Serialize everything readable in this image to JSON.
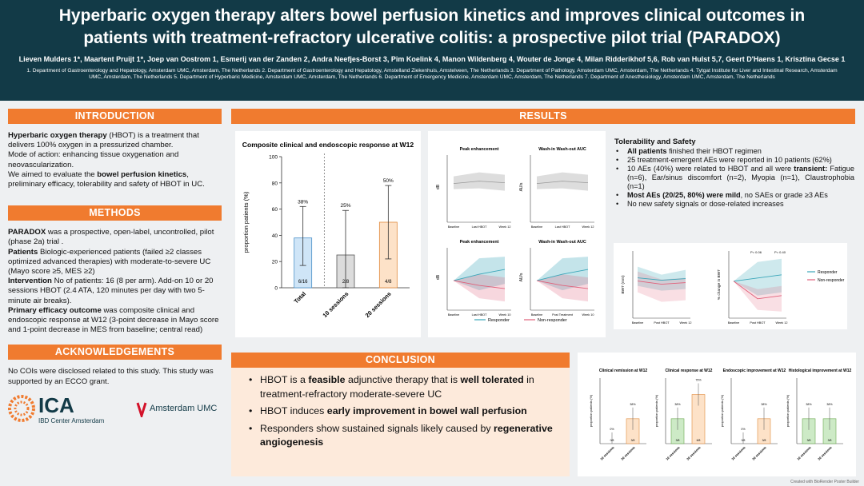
{
  "header": {
    "title_line1": "Hyperbaric oxygen therapy alters bowel perfusion kinetics and improves clinical outcomes in",
    "title_line2": "patients with treatment-refractory ulcerative colitis:  a prospective pilot trial (PARADOX)",
    "authors": "Lieven Mulders 1*, Maartent Pruijt 1*, Joep van Oostrom 1, Esmerij van der Zanden 2,  Andra Neefjes-Borst 3, Pim Koelink 4, Manon Wildenberg 4, Wouter de Jonge 4,  Milan Ridderikhof 5,6, Rob van Hulst 5,7, Geert D'Haens 1, Krisztina Gecse 1",
    "affiliations": "1. Department of Gastroenterology and Hepatology, Amsterdam UMC, Amsterdam, The Netherlands  2. Department of Gastroenterology and Hepatology, Amstelland Ziekenhuis, Amstelveen, The Netherlands 3. Department of Pathology, Amsterdam UMC, Amsterdam, The Netherlands  4. Tytgat Institute for Liver and Intestinal Research, Amsterdam UMC, Amsterdam, The Netherlands  5. Department of Hyperbaric Medicine, Amsterdam UMC, Amsterdam, The Netherlands  6. Department of Emergency Medicine, Amsterdam UMC, Amsterdam, The Netherlands  7. Department of Anesthesiology, Amsterdam UMC, Amsterdam, The Netherlands"
  },
  "intro": {
    "heading": "INTRODUCTION",
    "p1_bold": "Hyperbaric oxygen therapy",
    "p1_rest": " (HBOT) is a treatment that delivers 100% oxygen in a pressurized chamber.",
    "p2": "Mode of action: enhancing tissue oxygenation and neovascularization.",
    "p3_a": "We aimed to evaluate the ",
    "p3_bold": "bowel perfusion kinetics",
    "p3_b": ", preliminary efficacy, tolerability and safety of HBOT in UC."
  },
  "methods": {
    "heading": "METHODS",
    "m1_bold": "PARADOX",
    "m1_rest": " was a prospective, open-label, uncontrolled, pilot (phase 2a) trial .",
    "m2_bold": "Patients",
    "m2_rest": " Biologic-experienced patients (failed ≥2 classes optimized advanced therapies) with moderate-to-severe UC (Mayo score ≥5, MES ≥2)",
    "m3_bold": "Intervention",
    "m3_rest": " No of patients: 16 (8 per arm). Add-on 10 or 20 sessions HBOT (2.4 ATA, 120 minutes per day with two 5-minute air breaks).",
    "m4_bold": "Primary efficacy outcome",
    "m4_rest": " was composite clinical and endoscopic response at W12 (3-point decrease in Mayo score and 1-point decrease in MES from baseline; central read)"
  },
  "ack": {
    "heading": "ACKNOWLEDGEMENTS",
    "text": "No COIs were disclosed related to this study. This study was supported by an ECCO grant.",
    "logo1_big": "ICA",
    "logo1_small": "IBD Center Amsterdam",
    "logo2": "Amsterdam UMC"
  },
  "results": {
    "heading": "RESULTS",
    "tol_title": "Tolerability and Safety",
    "tol_items": [
      {
        "bold": "All patients",
        "rest": " finished their HBOT regimen"
      },
      {
        "bold": "",
        "rest": "25 treatment-emergent AEs were reported in 10 patients (62%)"
      },
      {
        "bold": "",
        "rest": "10 AEs (40%) were related to HBOT and all were "
      },
      {
        "bold": "Most AEs (20/25, 80%) were mild",
        "rest": ", no SAEs or grade ≥3 AEs"
      },
      {
        "bold": "",
        "rest": "No new safety signals or dose-related increases"
      }
    ],
    "tol_item3_bold": "transient:",
    "tol_item3_rest": " Fatigue (n=6), Ear/sinus discomfort (n=2), Myopia (n=1), Claustrophobia (n=1)"
  },
  "conclusion": {
    "heading": "CONCLUSION",
    "b1_a": "HBOT is a ",
    "b1_bold1": "feasible",
    "b1_b": " adjunctive therapy that is ",
    "b1_bold2": "well tolerated",
    "b1_c": " in treatment-refractory moderate-severe UC",
    "b2_a": "HBOT induces ",
    "b2_bold": "early improvement in bowel wall perfusion",
    "b3_a": "Responders show sustained signals likely caused by ",
    "b3_bold": "regenerative angiogenesis"
  },
  "footer": "Created with BioRender Poster Builder",
  "colors": {
    "accent": "#f07b2f",
    "header": "#123a47",
    "responder": "#3aa6b9",
    "nonresponder": "#e0607a"
  },
  "chart_data": [
    {
      "type": "bar",
      "title": "Composite clinical and endoscopic response at W12",
      "ylabel": "proportion patients (%)",
      "ylim": [
        0,
        100
      ],
      "yticks": [
        0,
        20,
        40,
        60,
        80,
        100
      ],
      "categories": [
        "Total",
        "10 sessions",
        "20 sessions"
      ],
      "values": [
        38,
        25,
        50
      ],
      "value_labels": [
        "38%",
        "25%",
        "50%"
      ],
      "counts": [
        "6/16",
        "2/8",
        "4/8"
      ],
      "err_low": [
        17,
        0,
        22
      ],
      "err_high": [
        62,
        59,
        78
      ],
      "colors": [
        "#cfe5f7",
        "#dcdcdc",
        "#fde2c8"
      ]
    },
    {
      "type": "line",
      "panels": [
        {
          "title": "Peak enhancement",
          "ylabel": "dB",
          "x": [
            "Baseline",
            "Last HBOT",
            "Week 12"
          ]
        },
        {
          "title": "Wash-in Wash-out AUC",
          "ylabel": "AU/s",
          "x": [
            "Baseline",
            "Last HBOT",
            "Week 12"
          ]
        },
        {
          "title": "Peak enhancement",
          "ylabel": "dB",
          "x": [
            "Baseline",
            "Last HBOT",
            "Week 10"
          ]
        },
        {
          "title": "Wash-in Wash-out AUC",
          "ylabel": "AU/s",
          "x": [
            "Baseline",
            "Post Treatment",
            "Week 10"
          ]
        }
      ],
      "legend": [
        "Responder",
        "Non-responder"
      ]
    },
    {
      "type": "line",
      "panels": [
        {
          "title": "",
          "ylabel": "BWT (mm)",
          "x": [
            "Baseline",
            "Post HBOT",
            "Week 12"
          ]
        },
        {
          "title": "",
          "ylabel": "% change in BWT",
          "x": [
            "Baseline",
            "Post HBOT",
            "Week 12"
          ],
          "annotations": [
            "P= 0.06",
            "P= 0.40"
          ]
        }
      ],
      "legend": [
        "Responder",
        "Non-responder"
      ]
    },
    {
      "type": "bar",
      "panels": [
        {
          "title": "Clinical remission at W12",
          "categories": [
            "10 sessions",
            "20 sessions"
          ],
          "values": [
            0,
            38
          ],
          "value_labels": [
            "0%",
            "38%"
          ],
          "counts": [
            "0/8",
            "3/8"
          ]
        },
        {
          "title": "Clinical response at W12",
          "categories": [
            "10 sessions",
            "20 sessions"
          ],
          "values": [
            38,
            75
          ],
          "value_labels": [
            "38%",
            "75%"
          ],
          "counts": [
            "3/8",
            "6/8"
          ]
        },
        {
          "title": "Endoscopic improvement at W12",
          "categories": [
            "10 sessions",
            "20 sessions"
          ],
          "values": [
            0,
            38
          ],
          "value_labels": [
            "0%",
            "38%"
          ],
          "counts": [
            "0/8",
            "3/8"
          ]
        },
        {
          "title": "Histological improvement at W12",
          "categories": [
            "10 sessions",
            "20 sessions"
          ],
          "values": [
            38,
            38
          ],
          "value_labels": [
            "38%",
            "38%"
          ],
          "counts": [
            "3/8",
            "3/8"
          ]
        }
      ],
      "ylabel": "proportion patients (%)"
    }
  ]
}
